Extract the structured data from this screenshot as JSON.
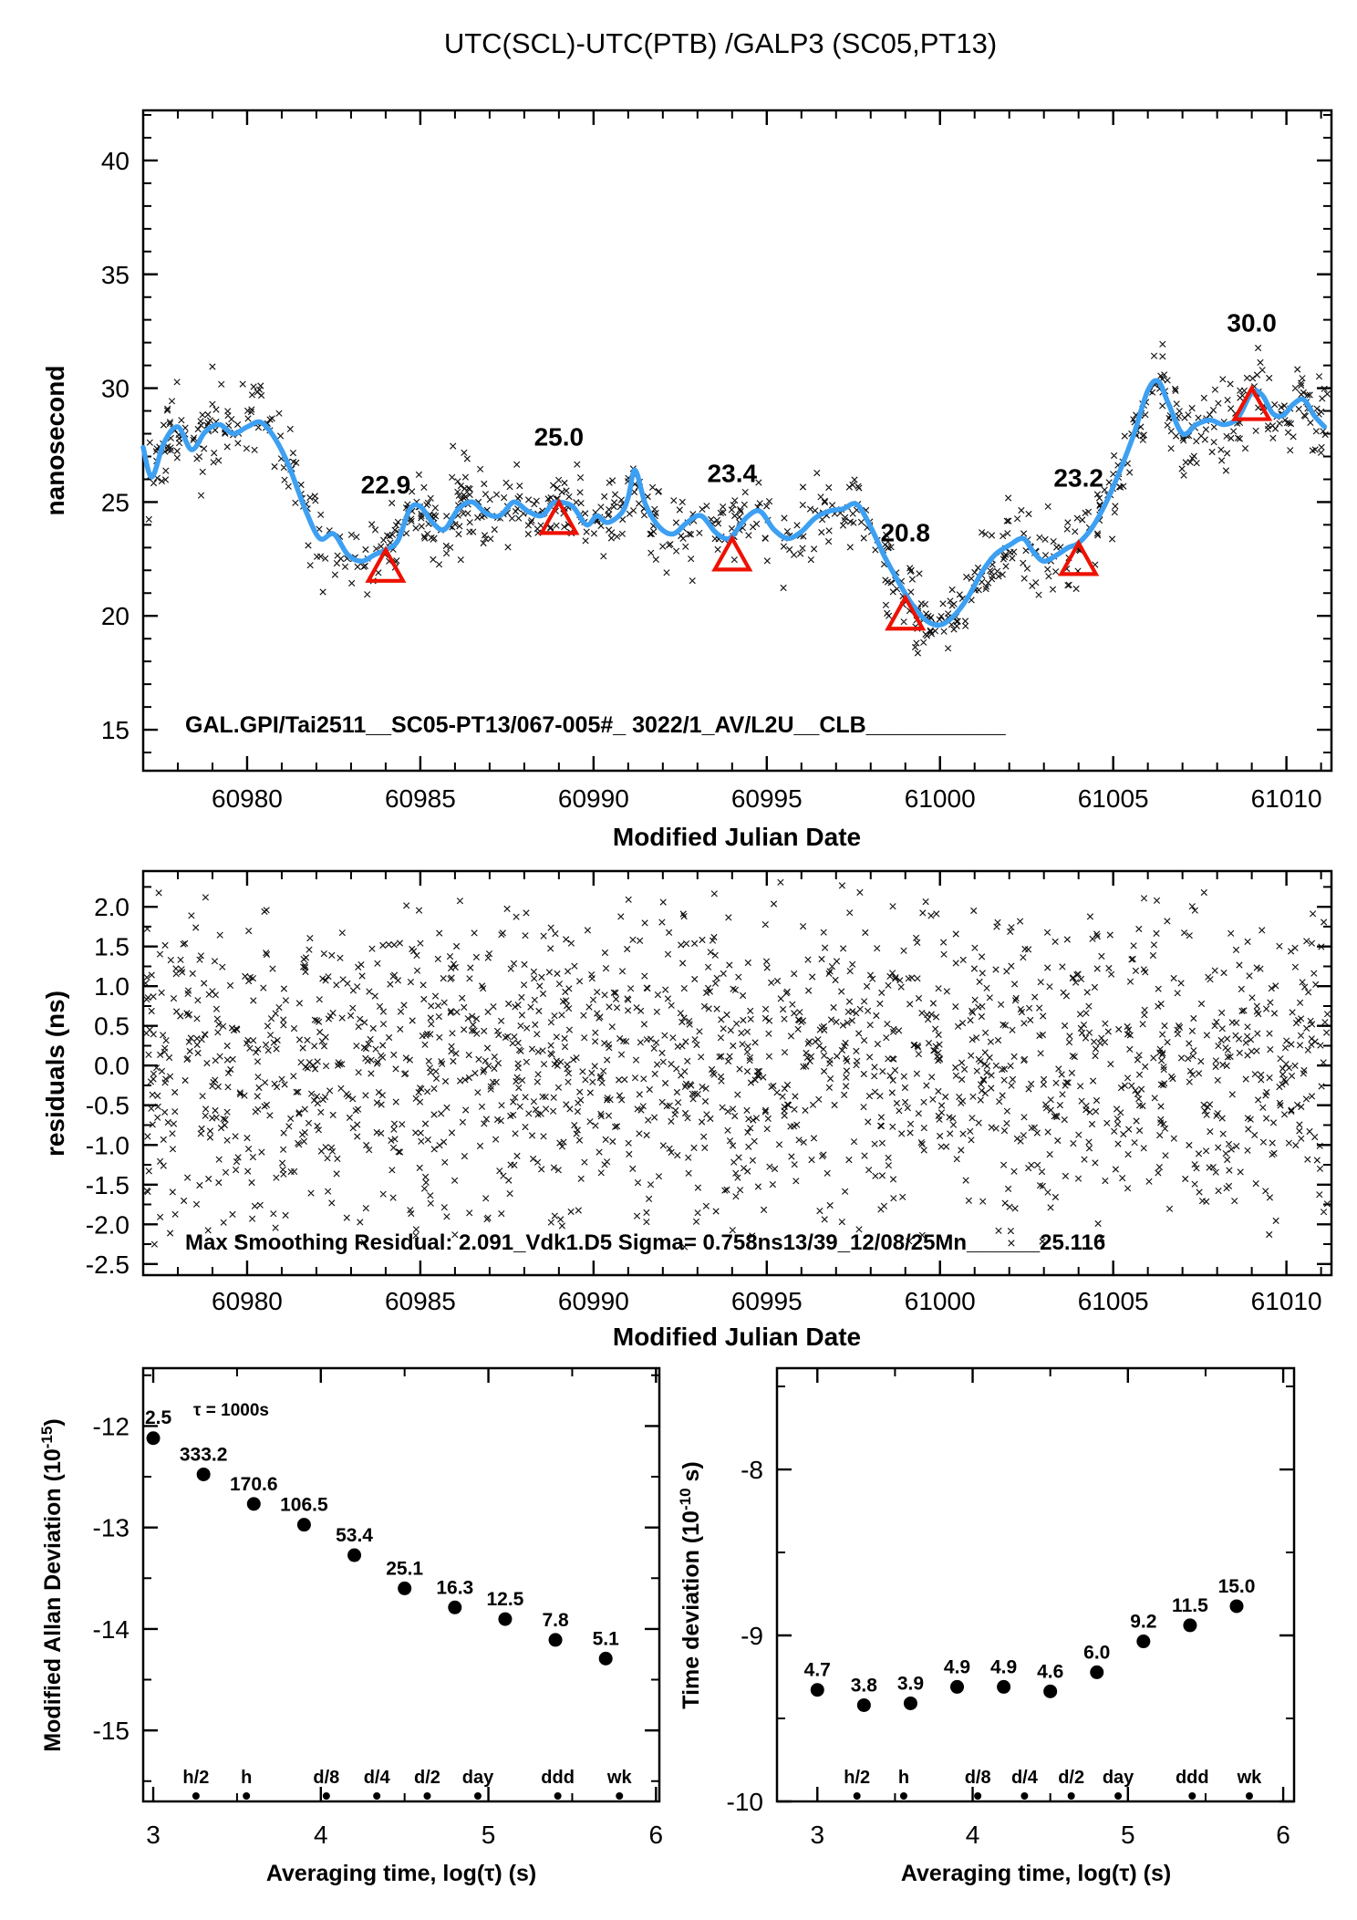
{
  "title": "UTC(SCL)-UTC(PTB)  /GALP3  (SC05,PT13)",
  "colors": {
    "accent_red": "#ee1100",
    "line_blue": "#3da0f2",
    "marker_black": "#111111"
  },
  "chart_data": [
    {
      "id": "phase",
      "type": "scatter",
      "xlabel": "Modified Julian Date",
      "ylabel": "nanosecond",
      "annotation": "GAL.GPI/Tai2511__SC05-PT13/067-005#_ 3022/1_AV/L2U__CLB___________",
      "xlim": [
        60977,
        61011.3
      ],
      "ylim": [
        13.2,
        42.2
      ],
      "x_ticks": [
        60980,
        60985,
        60990,
        60995,
        61000,
        61005,
        61010
      ],
      "y_ticks": [
        15,
        20,
        25,
        30,
        35,
        40
      ],
      "x_minor_step": 1,
      "y_minor_step": 1,
      "grid": false,
      "legend": "none",
      "smooth_line": {
        "x": [
          60977.0,
          60977.25,
          60977.6,
          60978.0,
          60978.4,
          60978.8,
          60979.2,
          60979.6,
          60980.0,
          60980.4,
          60980.8,
          60981.2,
          60981.7,
          60982.1,
          60982.5,
          60982.9,
          60983.3,
          60983.7,
          60984.0,
          60984.35,
          60984.7,
          60985.0,
          60985.35,
          60985.7,
          60986.1,
          60986.5,
          60986.9,
          60987.3,
          60987.7,
          60988.1,
          60988.5,
          60988.8,
          60989.0,
          60989.4,
          60989.8,
          60990.1,
          60990.4,
          60990.8,
          60991.0,
          60991.2,
          60991.5,
          60991.9,
          60992.3,
          60992.7,
          60993.1,
          60993.5,
          60993.8,
          60994.0,
          60994.4,
          60994.8,
          60995.2,
          60995.6,
          60996.0,
          60996.4,
          60996.8,
          60997.2,
          60997.6,
          60998.0,
          60998.4,
          60998.8,
          60999.2,
          60999.6,
          61000.0,
          61000.4,
          61000.8,
          61001.2,
          61001.6,
          61002.0,
          61002.4,
          61002.7,
          61003.0,
          61003.4,
          61003.7,
          61004.0,
          61004.4,
          61004.8,
          61005.2,
          61005.6,
          61006.0,
          61006.3,
          61006.6,
          61007.0,
          61007.4,
          61007.8,
          61008.2,
          61008.6,
          61009.0,
          61009.3,
          61009.6,
          61009.9,
          61010.2,
          61010.5,
          61010.8,
          61011.1
        ],
        "y": [
          27.4,
          26.1,
          27.6,
          28.3,
          27.3,
          28.1,
          28.4,
          28.0,
          28.3,
          28.5,
          27.8,
          26.6,
          24.6,
          23.4,
          23.6,
          22.7,
          22.4,
          22.7,
          22.9,
          23.3,
          24.7,
          24.8,
          24.1,
          23.8,
          24.7,
          25.0,
          24.5,
          24.4,
          25.0,
          24.6,
          24.4,
          24.9,
          25.0,
          24.8,
          24.0,
          24.4,
          24.1,
          24.5,
          25.2,
          26.4,
          24.9,
          23.9,
          23.6,
          24.1,
          24.4,
          23.7,
          23.4,
          23.5,
          24.3,
          24.6,
          23.8,
          23.4,
          23.7,
          24.3,
          24.6,
          24.7,
          24.9,
          23.9,
          22.6,
          21.5,
          20.5,
          19.8,
          19.6,
          20.0,
          20.8,
          21.9,
          22.7,
          23.1,
          23.4,
          22.8,
          22.4,
          22.7,
          23.0,
          23.2,
          23.9,
          25.0,
          26.4,
          28.0,
          29.9,
          30.3,
          29.3,
          28.0,
          28.4,
          28.6,
          28.4,
          28.7,
          29.8,
          29.7,
          28.9,
          28.8,
          29.3,
          29.5,
          28.8,
          28.3
        ]
      },
      "calibration_points": [
        {
          "mjd": 60984,
          "ns": 22.9,
          "label": "22.9"
        },
        {
          "mjd": 60989,
          "ns": 25.0,
          "label": "25.0"
        },
        {
          "mjd": 60994,
          "ns": 23.4,
          "label": "23.4"
        },
        {
          "mjd": 60999,
          "ns": 20.8,
          "label": "20.8"
        },
        {
          "mjd": 61004,
          "ns": 23.2,
          "label": "23.2"
        },
        {
          "mjd": 61009,
          "ns": 30.0,
          "label": "30.0"
        }
      ],
      "scatter_gen": {
        "marker": "x",
        "count": 880,
        "seed": 20251208,
        "noise_sd": 0.85
      }
    },
    {
      "id": "residuals",
      "type": "scatter",
      "xlabel": "Modified Julian Date",
      "ylabel": "residuals (ns)",
      "annotation": "Max Smoothing Residual: 2.091_Vdk1.D5  Sigma= 0.758ns13/39_12/08/25Mn______25.116",
      "xlim": [
        60977,
        61011.3
      ],
      "ylim": [
        -2.64,
        2.45
      ],
      "x_ticks": [
        60980,
        60985,
        60990,
        60995,
        61000,
        61005,
        61010
      ],
      "y_ticks": [
        2.0,
        1.5,
        1.0,
        0.5,
        0.0,
        -0.5,
        -1.0,
        -1.5,
        -2.0,
        -2.5
      ],
      "y_tick_labels": [
        "2.0",
        "1.5",
        "1.0",
        "0.5",
        "0.0",
        "-0.5",
        "-1.0",
        "-1.5",
        "-2.0",
        "-2.5"
      ],
      "x_minor_step": 1,
      "y_minor_step": 0.25,
      "grid": false,
      "legend": "none",
      "scatter_gen": {
        "marker": "x",
        "count": 1750,
        "seed": 98531,
        "spread": 2.35
      }
    },
    {
      "id": "mdev",
      "type": "scatter",
      "xlabel": "Averaging time, log(τ) (s)",
      "ylabel_parts": {
        "pre": "Modified Allan Deviation (10",
        "sup": "-15",
        "post": ")"
      },
      "annotation": "τ = 1000s",
      "xlim": [
        2.94,
        6.02
      ],
      "ylim": [
        -15.7,
        -11.43
      ],
      "x_ticks": [
        3,
        4,
        5,
        6
      ],
      "y_ticks": [
        -12,
        -13,
        -14,
        -15
      ],
      "x_minor_step": 0.5,
      "y_minor_step": 0.5,
      "grid": false,
      "legend": "none",
      "points": [
        {
          "log_tau": 3.0,
          "log_dev": -12.12,
          "label": "2.5",
          "label_clipped": true
        },
        {
          "log_tau": 3.3,
          "log_dev": -12.477,
          "label": "333.2"
        },
        {
          "log_tau": 3.6,
          "log_dev": -12.768,
          "label": "170.6"
        },
        {
          "log_tau": 3.9,
          "log_dev": -12.973,
          "label": "106.5"
        },
        {
          "log_tau": 4.2,
          "log_dev": -13.273,
          "label": "53.4"
        },
        {
          "log_tau": 4.5,
          "log_dev": -13.6,
          "label": "25.1"
        },
        {
          "log_tau": 4.8,
          "log_dev": -13.788,
          "label": "16.3"
        },
        {
          "log_tau": 5.1,
          "log_dev": -13.903,
          "label": "12.5"
        },
        {
          "log_tau": 5.4,
          "log_dev": -14.108,
          "label": "7.8"
        },
        {
          "log_tau": 5.7,
          "log_dev": -14.292,
          "label": "5.1"
        }
      ],
      "time_marks": [
        {
          "log_tau": 3.255,
          "label": "h/2"
        },
        {
          "log_tau": 3.556,
          "label": "h"
        },
        {
          "log_tau": 4.033,
          "label": "d/8"
        },
        {
          "log_tau": 4.334,
          "label": "d/4"
        },
        {
          "log_tau": 4.635,
          "label": "d/2"
        },
        {
          "log_tau": 4.937,
          "label": "day"
        },
        {
          "log_tau": 5.414,
          "label": "ddd"
        },
        {
          "log_tau": 5.782,
          "label": "wk"
        }
      ]
    },
    {
      "id": "tdev",
      "type": "scatter",
      "xlabel": "Averaging time, log(τ) (s)",
      "ylabel_parts": {
        "pre": "Time deviation (10",
        "sup": "-10",
        "post": " s)"
      },
      "xlim": [
        2.74,
        6.07
      ],
      "ylim": [
        -10.0,
        -7.39
      ],
      "x_ticks": [
        3,
        4,
        5,
        6
      ],
      "y_ticks": [
        -8,
        -9,
        -10
      ],
      "x_minor_step": 0.5,
      "y_minor_step": 0.5,
      "grid": false,
      "legend": "none",
      "points": [
        {
          "log_tau": 3.0,
          "log_dev": -9.328,
          "label": "4.7"
        },
        {
          "log_tau": 3.3,
          "log_dev": -9.42,
          "label": "3.8"
        },
        {
          "log_tau": 3.6,
          "log_dev": -9.409,
          "label": "3.9"
        },
        {
          "log_tau": 3.9,
          "log_dev": -9.31,
          "label": "4.9"
        },
        {
          "log_tau": 4.2,
          "log_dev": -9.31,
          "label": "4.9"
        },
        {
          "log_tau": 4.5,
          "log_dev": -9.337,
          "label": "4.6"
        },
        {
          "log_tau": 4.8,
          "log_dev": -9.222,
          "label": "6.0"
        },
        {
          "log_tau": 5.1,
          "log_dev": -9.036,
          "label": "9.2"
        },
        {
          "log_tau": 5.4,
          "log_dev": -8.939,
          "label": "11.5"
        },
        {
          "log_tau": 5.7,
          "log_dev": -8.824,
          "label": "15.0"
        }
      ],
      "time_marks": [
        {
          "log_tau": 3.255,
          "label": "h/2"
        },
        {
          "log_tau": 3.556,
          "label": "h"
        },
        {
          "log_tau": 4.033,
          "label": "d/8"
        },
        {
          "log_tau": 4.334,
          "label": "d/4"
        },
        {
          "log_tau": 4.635,
          "label": "d/2"
        },
        {
          "log_tau": 4.937,
          "label": "day"
        },
        {
          "log_tau": 5.414,
          "label": "ddd"
        },
        {
          "log_tau": 5.782,
          "label": "wk"
        }
      ]
    }
  ]
}
